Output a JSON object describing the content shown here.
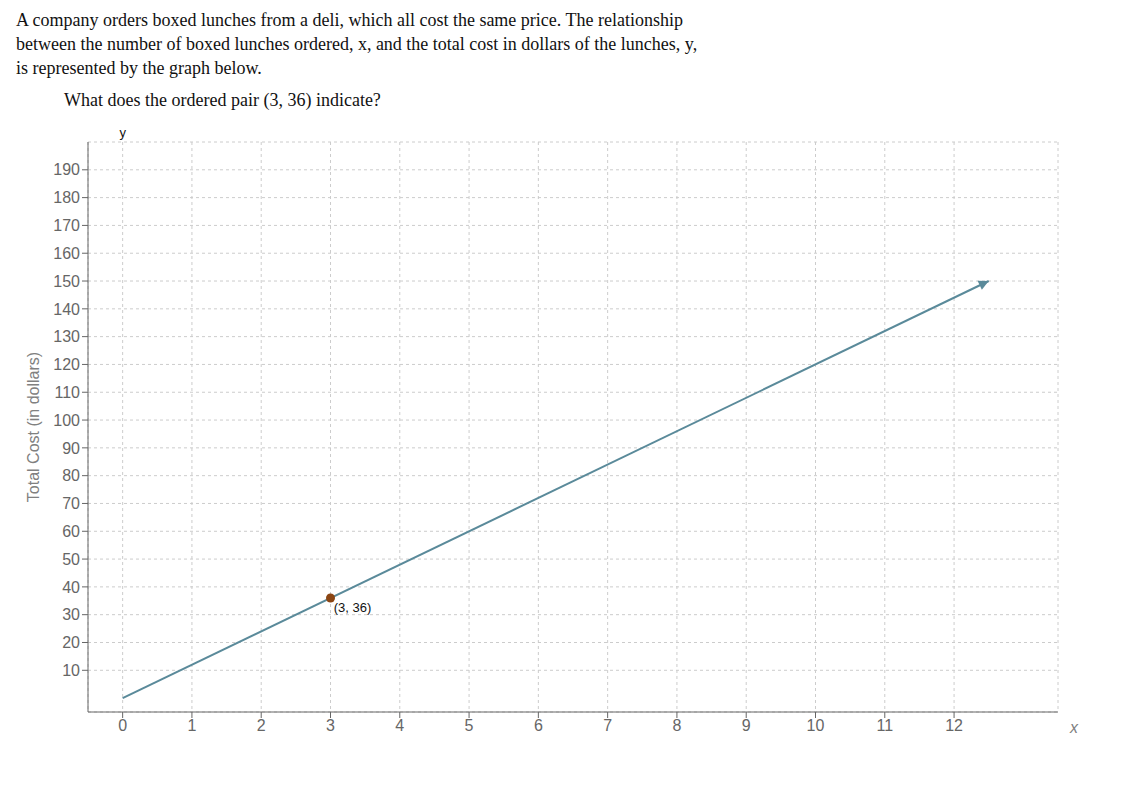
{
  "chart_data": {
    "type": "line",
    "title": [
      "A company orders boxed lunches from a deli, which all cost the same price. The relationship",
      "between the number of boxed lunches ordered, x, and the total cost in dollars of the lunches, y,",
      "is represented by the graph below."
    ],
    "subtitle": "What does the ordered pair (3, 36) indicate?",
    "xlabel": "x",
    "ylabel": "Total Cost (in dollars)",
    "xlim": [
      -0.5,
      13.5
    ],
    "ylim": [
      -5,
      200
    ],
    "xticks": [
      0,
      1,
      2,
      3,
      4,
      5,
      6,
      7,
      8,
      9,
      10,
      11,
      12
    ],
    "yticks": [
      10,
      20,
      30,
      40,
      50,
      60,
      70,
      80,
      90,
      100,
      110,
      120,
      130,
      140,
      150,
      160,
      170,
      180,
      190
    ],
    "grid": true,
    "series": [
      {
        "type": "line",
        "x": [
          0,
          12.5
        ],
        "values": [
          0,
          150
        ],
        "color": "#5a8a9a",
        "marker": "arrow"
      },
      {
        "type": "scatter",
        "x": [
          3
        ],
        "values": [
          36
        ],
        "color": "#8B4513",
        "marker": "circle"
      }
    ],
    "annotations": [
      {
        "text": "(3, 36)",
        "x": 3,
        "y": 36
      },
      {
        "text": "y",
        "x": 0,
        "y": 200
      }
    ]
  }
}
